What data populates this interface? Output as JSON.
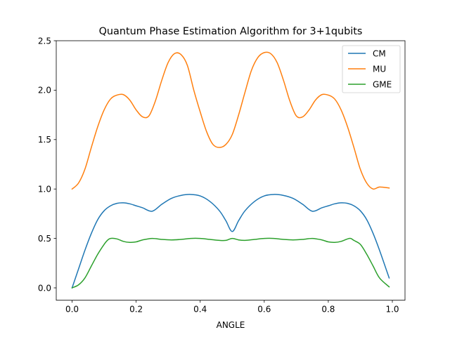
{
  "chart_data": {
    "type": "line",
    "title": "Quantum Phase Estimation Algorithm for 3+1qubits",
    "xlabel": "ANGLE",
    "ylabel": "",
    "xlim": [
      -0.0495,
      1.0395
    ],
    "ylim": [
      -0.125,
      2.5
    ],
    "xticks": [
      "0.0",
      "0.2",
      "0.4",
      "0.6",
      "0.8",
      "1.0"
    ],
    "xtick_values": [
      0.0,
      0.2,
      0.4,
      0.6,
      0.8,
      1.0
    ],
    "yticks": [
      "0.0",
      "0.5",
      "1.0",
      "1.5",
      "2.0",
      "2.5"
    ],
    "ytick_values": [
      0.0,
      0.5,
      1.0,
      1.5,
      2.0,
      2.5
    ],
    "grid": false,
    "legend_position": "upper right",
    "series": [
      {
        "name": "CM",
        "color": "#1f77b4",
        "x": [
          0.0,
          0.02,
          0.04,
          0.06,
          0.08,
          0.1,
          0.12,
          0.14,
          0.16,
          0.18,
          0.2,
          0.22,
          0.25,
          0.28,
          0.31,
          0.34,
          0.37,
          0.4,
          0.43,
          0.46,
          0.48,
          0.5,
          0.52,
          0.54,
          0.57,
          0.6,
          0.63,
          0.66,
          0.69,
          0.72,
          0.75,
          0.78,
          0.8,
          0.82,
          0.84,
          0.86,
          0.88,
          0.9,
          0.92,
          0.94,
          0.96,
          0.99
        ],
        "y": [
          0.0,
          0.19,
          0.38,
          0.55,
          0.69,
          0.78,
          0.83,
          0.855,
          0.86,
          0.85,
          0.83,
          0.81,
          0.775,
          0.845,
          0.905,
          0.935,
          0.945,
          0.93,
          0.875,
          0.78,
          0.68,
          0.57,
          0.68,
          0.78,
          0.875,
          0.93,
          0.945,
          0.935,
          0.905,
          0.845,
          0.775,
          0.81,
          0.83,
          0.85,
          0.86,
          0.855,
          0.83,
          0.78,
          0.69,
          0.55,
          0.38,
          0.1
        ]
      },
      {
        "name": "MU",
        "color": "#ff7f0e",
        "x": [
          0.0,
          0.02,
          0.04,
          0.06,
          0.08,
          0.1,
          0.12,
          0.14,
          0.16,
          0.18,
          0.2,
          0.22,
          0.24,
          0.26,
          0.28,
          0.3,
          0.32,
          0.34,
          0.36,
          0.38,
          0.4,
          0.42,
          0.44,
          0.46,
          0.48,
          0.5,
          0.52,
          0.54,
          0.56,
          0.58,
          0.6,
          0.62,
          0.64,
          0.66,
          0.68,
          0.7,
          0.72,
          0.74,
          0.76,
          0.78,
          0.8,
          0.82,
          0.84,
          0.86,
          0.88,
          0.9,
          0.92,
          0.94,
          0.96,
          0.99
        ],
        "y": [
          1.0,
          1.06,
          1.2,
          1.42,
          1.63,
          1.8,
          1.91,
          1.95,
          1.955,
          1.9,
          1.8,
          1.73,
          1.74,
          1.89,
          2.1,
          2.28,
          2.37,
          2.36,
          2.25,
          2.0,
          1.78,
          1.58,
          1.45,
          1.42,
          1.45,
          1.55,
          1.75,
          1.98,
          2.2,
          2.33,
          2.38,
          2.37,
          2.28,
          2.1,
          1.89,
          1.74,
          1.73,
          1.8,
          1.9,
          1.955,
          1.95,
          1.91,
          1.8,
          1.63,
          1.42,
          1.2,
          1.06,
          1.0,
          1.02,
          1.01
        ]
      },
      {
        "name": "GME",
        "color": "#2ca02c",
        "x": [
          0.0,
          0.02,
          0.04,
          0.06,
          0.08,
          0.1,
          0.11,
          0.12,
          0.14,
          0.16,
          0.18,
          0.2,
          0.22,
          0.25,
          0.28,
          0.31,
          0.34,
          0.37,
          0.4,
          0.43,
          0.46,
          0.48,
          0.5,
          0.52,
          0.54,
          0.57,
          0.6,
          0.63,
          0.66,
          0.69,
          0.72,
          0.75,
          0.78,
          0.8,
          0.82,
          0.84,
          0.86,
          0.87,
          0.88,
          0.9,
          0.92,
          0.94,
          0.96,
          0.99
        ],
        "y": [
          0.0,
          0.03,
          0.1,
          0.22,
          0.34,
          0.44,
          0.48,
          0.5,
          0.495,
          0.47,
          0.46,
          0.465,
          0.485,
          0.5,
          0.49,
          0.485,
          0.49,
          0.5,
          0.5,
          0.49,
          0.48,
          0.48,
          0.5,
          0.485,
          0.48,
          0.49,
          0.5,
          0.5,
          0.49,
          0.485,
          0.49,
          0.5,
          0.485,
          0.465,
          0.46,
          0.47,
          0.495,
          0.5,
          0.48,
          0.44,
          0.34,
          0.22,
          0.1,
          0.01
        ]
      }
    ]
  }
}
